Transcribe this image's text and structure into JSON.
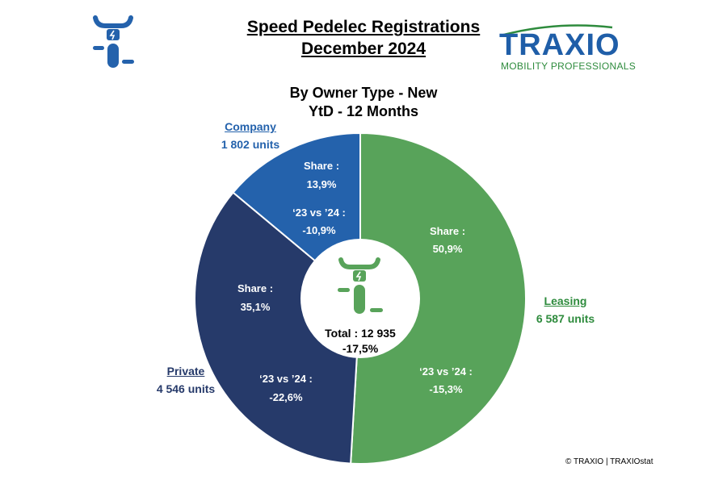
{
  "header": {
    "title_line1": "Speed Pedelec Registrations",
    "title_line2": "December 2024",
    "subtitle_line1": "By Owner Type - New",
    "subtitle_line2": "YtD - 12 Months"
  },
  "brand": {
    "name": "TRAXIO",
    "tagline": "MOBILITY PROFESSIONALS",
    "color_blue": "#1f5ea8",
    "color_green": "#2e8b3d"
  },
  "footer": {
    "copyright": "© TRAXIO | TRAXIOstat"
  },
  "chart_data": {
    "type": "pie",
    "style": "donut",
    "total_label": "Total : 12 935",
    "total_change": "-17,5%",
    "slices": [
      {
        "name": "Leasing",
        "units": 6587,
        "units_label": "6 587 units",
        "share": 50.9,
        "share_label": "50,9%",
        "change": -15.3,
        "change_label": "-15,3%",
        "color": "#58a35a",
        "label_color": "#2e8b3d"
      },
      {
        "name": "Private",
        "units": 4546,
        "units_label": "4 546 units",
        "share": 35.1,
        "share_label": "35,1%",
        "change": -22.6,
        "change_label": "-22,6%",
        "color": "#263a6a",
        "label_color": "#263a6a"
      },
      {
        "name": "Company",
        "units": 1802,
        "units_label": "1 802 units",
        "share": 13.9,
        "share_label": "13,9%",
        "change": -10.9,
        "change_label": "-10,9%",
        "color": "#2462ac",
        "label_color": "#2462ac"
      }
    ],
    "share_prefix": "Share :",
    "change_prefix": "‘23 vs ’24 :"
  }
}
